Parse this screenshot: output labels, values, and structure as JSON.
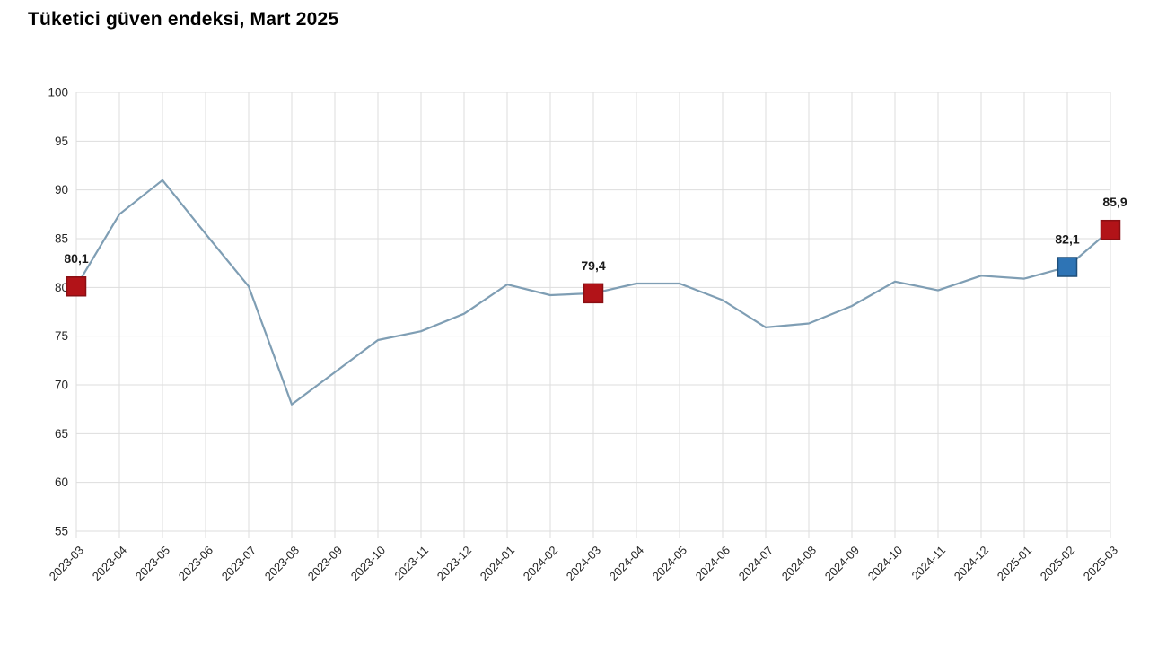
{
  "chart_data": {
    "type": "line",
    "title": "Tüketici güven endeksi, Mart 2025",
    "xlabel": "",
    "ylabel": "",
    "categories": [
      "2023-03",
      "2023-04",
      "2023-05",
      "2023-06",
      "2023-07",
      "2023-08",
      "2023-09",
      "2023-10",
      "2023-11",
      "2023-12",
      "2024-01",
      "2024-02",
      "2024-03",
      "2024-04",
      "2024-05",
      "2024-06",
      "2024-07",
      "2024-08",
      "2024-09",
      "2024-10",
      "2024-11",
      "2024-12",
      "2025-01",
      "2025-02",
      "2025-03"
    ],
    "values": [
      80.1,
      87.5,
      91.0,
      85.5,
      80.1,
      68.0,
      71.3,
      74.6,
      75.5,
      77.3,
      80.3,
      79.2,
      79.4,
      80.4,
      80.4,
      78.7,
      75.9,
      76.3,
      78.1,
      80.6,
      79.7,
      81.2,
      80.9,
      82.1,
      85.9
    ],
    "ylim": [
      55,
      100
    ],
    "ytick_step": 5,
    "grid": true,
    "legend": "none",
    "line_color": "#7f9eb4",
    "gridline_color": "#dddddd",
    "axis_text_color": "#262626",
    "highlights": [
      {
        "index": 0,
        "label": "80,1",
        "fill": "#b21318",
        "border": "#8a0f13"
      },
      {
        "index": 12,
        "label": "79,4",
        "fill": "#b21318",
        "border": "#8a0f13"
      },
      {
        "index": 23,
        "label": "82,1",
        "fill": "#2e74b5",
        "border": "#1f4e79"
      },
      {
        "index": 24,
        "label": "85,9",
        "fill": "#b21318",
        "border": "#8a0f13"
      }
    ]
  }
}
